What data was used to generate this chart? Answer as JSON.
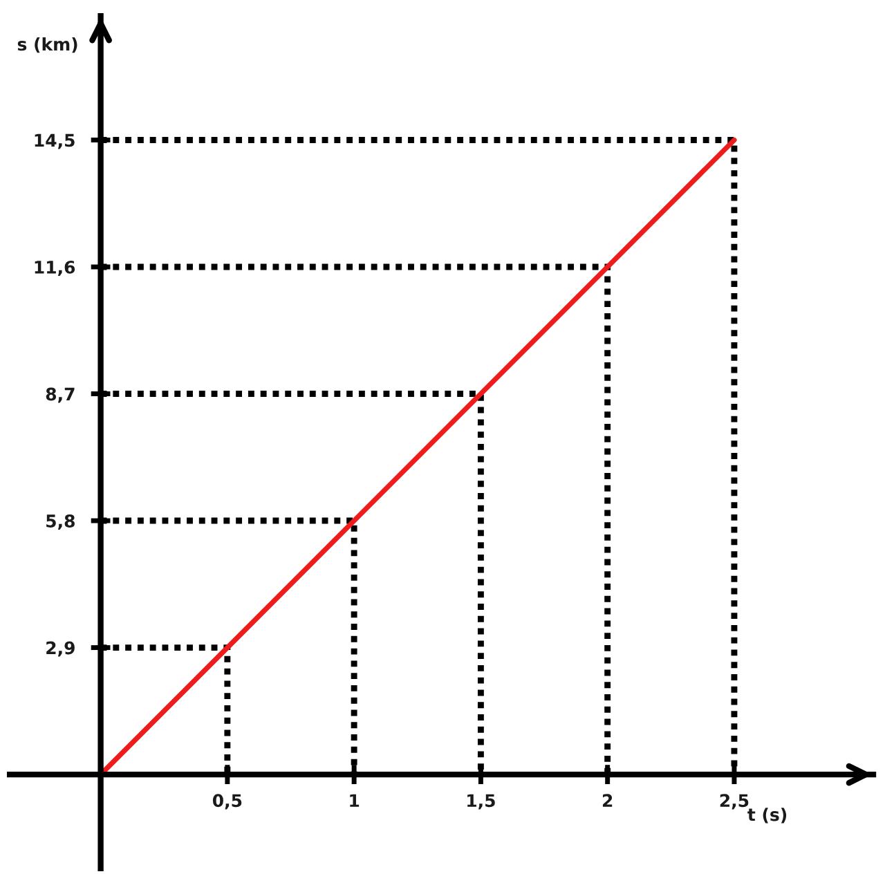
{
  "chart_data": {
    "type": "line",
    "xlabel": "t (s)",
    "ylabel": "s (km)",
    "xlim": [
      -0.37,
      3.06
    ],
    "ylim": [
      -2.21,
      17.4
    ],
    "xticks": [
      {
        "value": 0.5,
        "label": "0,5"
      },
      1,
      {
        "value": 1.5,
        "label": "1,5"
      },
      2,
      {
        "value": 2.5,
        "label": "2,5"
      }
    ],
    "yticks": [
      {
        "value": 2.9,
        "label": "2,9"
      },
      {
        "value": 5.8,
        "label": "5,8"
      },
      {
        "value": 8.7,
        "label": "8,7"
      },
      {
        "value": 11.6,
        "label": "11,6"
      },
      {
        "value": 14.5,
        "label": "14,5"
      }
    ],
    "series": [
      {
        "color": "#ee1c1c",
        "line_style": "solid",
        "x": [
          0,
          0.5,
          1,
          1.5,
          2,
          2.5
        ],
        "values": [
          0,
          2.9,
          5.8,
          8.7,
          11.6,
          14.5
        ]
      },
      {
        "color": "#000000",
        "line_style": "dotted",
        "x": [
          0,
          0.5,
          0.5
        ],
        "values": [
          2.9,
          2.9,
          0
        ]
      },
      {
        "color": "#000000",
        "line_style": "dotted",
        "x": [
          0,
          1,
          1
        ],
        "values": [
          5.8,
          5.8,
          0
        ]
      },
      {
        "color": "#000000",
        "line_style": "dotted",
        "x": [
          0,
          1.5,
          1.5
        ],
        "values": [
          8.7,
          8.7,
          0
        ]
      },
      {
        "color": "#000000",
        "line_style": "dotted",
        "x": [
          0,
          2,
          2
        ],
        "values": [
          11.6,
          11.6,
          0
        ]
      },
      {
        "color": "#000000",
        "line_style": "dotted",
        "x": [
          0,
          2.5,
          2.5
        ],
        "values": [
          14.5,
          14.5,
          0
        ]
      }
    ]
  }
}
